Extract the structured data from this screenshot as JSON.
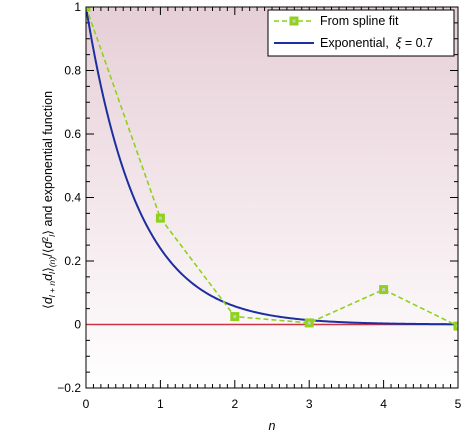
{
  "chart_data": {
    "type": "line",
    "title": "",
    "xlabel": "n",
    "ylabel": "⟨d_{l+n} d_l⟩_{(n)} / ⟨d_l²⟩ and exponential function",
    "xlim": [
      0,
      5
    ],
    "ylim": [
      -0.2,
      1
    ],
    "x_ticks": [
      "0",
      "1",
      "2",
      "3",
      "4",
      "5"
    ],
    "y_ticks": [
      "−0.2",
      "0",
      "0.2",
      "0.4",
      "0.6",
      "0.8",
      "1"
    ],
    "grid": false,
    "legend_position": "top-right",
    "background": "gradient pink (top) to white (bottom)",
    "series": [
      {
        "name": "From spline fit",
        "style": "dashed line with square markers",
        "color": "#8fd21c",
        "x": [
          0,
          1,
          2,
          3,
          4,
          5
        ],
        "y": [
          1.0,
          0.335,
          0.025,
          0.005,
          0.11,
          -0.005
        ]
      },
      {
        "name": "Exponential,  ξ = 0.7",
        "style": "solid line",
        "color": "#1c2fa0",
        "function": "exp(-n/0.7)",
        "x_range": [
          0,
          5
        ]
      }
    ],
    "reference_line": {
      "y": 0,
      "color": "#cc3344"
    },
    "legend": {
      "entries": [
        "From spline fit",
        "Exponential,  ξ = 0.7"
      ]
    }
  },
  "axis_title_y": {
    "p1": "⟨",
    "d1": "d",
    "sub1": "l + n",
    "p2": "d",
    "sub2": "l",
    "p3": "⟩",
    "sub3": "(n)",
    "p4": "/⟨",
    "d2": "d",
    "sup": "2",
    "sub4": "l",
    "p5": "⟩ and exponential function"
  },
  "axis_title_x": "n",
  "legend": {
    "spline_label": "From spline fit",
    "exp_label_prefix": "Exponential,  ",
    "exp_label_xi": "ξ",
    "exp_label_suffix": " = 0.7"
  }
}
